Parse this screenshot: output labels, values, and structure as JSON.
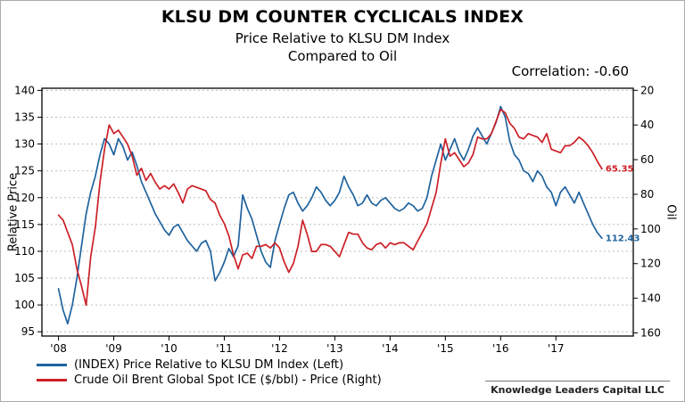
{
  "header": {
    "title": "KLSU DM COUNTER CYCLICALS INDEX",
    "subtitle1": "Price Relative to KLSU DM Index",
    "subtitle2": "Compared to Oil",
    "correlation": "Correlation: -0.60"
  },
  "legend": {
    "items": [
      {
        "label": "(INDEX) Price Relative to KLSU DM Index  (Left)"
      },
      {
        "label": "Crude Oil Brent Global Spot ICE ($/bbl) - Price  (Right)"
      }
    ]
  },
  "footer": {
    "company": "Knowledge Leaders Capital LLC"
  },
  "chart_data": {
    "type": "line",
    "title": "KLSU DM COUNTER CYCLICALS INDEX",
    "subtitle": "Price Relative to KLSU DM Index / Compared to Oil",
    "annotation": "Correlation: -0.60",
    "grid": "horizontal-dashed",
    "legend_position": "bottom-left",
    "x_start": 2008.0,
    "x_step": 0.0833333,
    "x_range": [
      2007.7,
      2018.4
    ],
    "xticks": {
      "values": [
        2008,
        2009,
        2010,
        2011,
        2012,
        2013,
        2014,
        2015,
        2016,
        2017
      ],
      "labels": [
        "'08",
        "'09",
        "'10",
        "'11",
        "'12",
        "'13",
        "'14",
        "'15",
        "'16",
        "'17"
      ]
    },
    "left_axis": {
      "label": "Relative Price",
      "top_value": 140.4,
      "bottom_value": 94.2,
      "ticks": [
        140,
        135,
        130,
        125,
        120,
        115,
        110,
        105,
        100,
        95
      ]
    },
    "right_axis": {
      "label": "Oil",
      "inverted": true,
      "top_value": 18.8,
      "bottom_value": 161.8,
      "ticks": [
        20,
        40,
        60,
        80,
        100,
        120,
        140,
        160
      ]
    },
    "series": [
      {
        "name": "(INDEX) Price Relative to KLSU DM Index",
        "axis": "left",
        "color": "#1f639e",
        "end_label": "112.43",
        "values": [
          103,
          99,
          96.5,
          100,
          105,
          111,
          117,
          121,
          124,
          128,
          131,
          130,
          128,
          131,
          129.5,
          127,
          128.5,
          126,
          123,
          121,
          119,
          117,
          115.5,
          114,
          113,
          114.5,
          115,
          113.5,
          112,
          111,
          110,
          111.5,
          112,
          110,
          104.5,
          106,
          108,
          110.5,
          109,
          111,
          120.5,
          118,
          116,
          113,
          110,
          108,
          107,
          112,
          115,
          118,
          120.5,
          121,
          119,
          117.5,
          118.5,
          120,
          122,
          121,
          119.5,
          118.5,
          119.5,
          121,
          124,
          122,
          120.5,
          118.5,
          119,
          120.5,
          119,
          118.5,
          119.5,
          120,
          119,
          118,
          117.5,
          118,
          119,
          118.5,
          117.5,
          118,
          120,
          124,
          127,
          130,
          127,
          129,
          131,
          128.5,
          127,
          129,
          131.5,
          133,
          131.5,
          130,
          132,
          134,
          137,
          135,
          130.5,
          128,
          127,
          125,
          124.5,
          123,
          125,
          124,
          122,
          121,
          118.5,
          121,
          122,
          120.5,
          119,
          121,
          119,
          117,
          115,
          113.5,
          112.43
        ]
      },
      {
        "name": "Crude Oil Brent Global Spot ICE ($/bbl) - Price",
        "axis": "right",
        "color": "#cc2027",
        "end_label": "65.35",
        "values": [
          92,
          95,
          102,
          109,
          123,
          133,
          144,
          116,
          99,
          73,
          54,
          40,
          45,
          43,
          47,
          51,
          58,
          69,
          65,
          72,
          68,
          73,
          77,
          75,
          77,
          74,
          79,
          85,
          77,
          75,
          76,
          77,
          78,
          83,
          85,
          92,
          97,
          104,
          115,
          123,
          115,
          114,
          117,
          110,
          110,
          109,
          111,
          108,
          111,
          119,
          125,
          120,
          110,
          95,
          103,
          113,
          113,
          109,
          109,
          110,
          113,
          116,
          109,
          102,
          103,
          103,
          108,
          111,
          112,
          109,
          108,
          111,
          108,
          109,
          108,
          108,
          110,
          112,
          107,
          102,
          97,
          88,
          79,
          62,
          48,
          58,
          56,
          60,
          64,
          62,
          57,
          47,
          48,
          48,
          45,
          38,
          31,
          33,
          39,
          42,
          47,
          48,
          45,
          46,
          47,
          50,
          45,
          54,
          55,
          56,
          52,
          52,
          50,
          47,
          49,
          52,
          56,
          61,
          65.35
        ]
      }
    ]
  }
}
